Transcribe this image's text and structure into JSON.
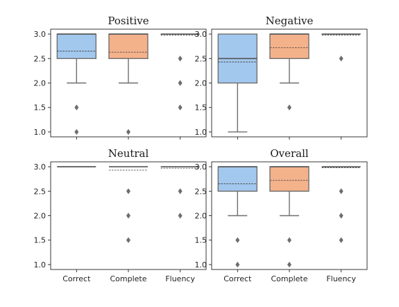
{
  "colors": {
    "box_fills": [
      "#a3c8ee",
      "#f4b28b",
      "#a6d8a6"
    ],
    "box_edge": "#6e6e6e",
    "flier": "#6e6e6e"
  },
  "chart_data": [
    {
      "type": "box",
      "title": "Positive",
      "categories": [
        "Correct",
        "Complete",
        "Fluency"
      ],
      "ylim": [
        0.9,
        3.1
      ],
      "yticks": [
        1.0,
        1.5,
        2.0,
        2.5,
        3.0
      ],
      "ytick_labels": [
        "1.0",
        "1.5",
        "2.0",
        "2.5",
        "3.0"
      ],
      "show_x_tick_labels": false,
      "boxes": [
        {
          "q1": 2.5,
          "median": 3.0,
          "q3": 3.0,
          "mean": 2.65,
          "whisker_low": 2.0,
          "whisker_high": 3.0,
          "fliers": [
            1.5,
            1.0
          ]
        },
        {
          "q1": 2.5,
          "median": 3.0,
          "q3": 3.0,
          "mean": 2.63,
          "whisker_low": 2.0,
          "whisker_high": 3.0,
          "fliers": [
            1.0
          ]
        },
        {
          "q1": 3.0,
          "median": 3.0,
          "q3": 3.0,
          "mean": 2.98,
          "whisker_low": 3.0,
          "whisker_high": 3.0,
          "fliers": [
            2.5,
            2.0,
            1.5
          ]
        }
      ]
    },
    {
      "type": "box",
      "title": "Negative",
      "categories": [
        "Correct",
        "Complete",
        "Fluency"
      ],
      "ylim": [
        0.9,
        3.1
      ],
      "yticks": [
        1.0,
        1.5,
        2.0,
        2.5,
        3.0
      ],
      "ytick_labels": [
        "1.0",
        "1.5",
        "2.0",
        "2.5",
        "3.0"
      ],
      "show_x_tick_labels": false,
      "boxes": [
        {
          "q1": 2.0,
          "median": 2.5,
          "q3": 3.0,
          "mean": 2.43,
          "whisker_low": 1.0,
          "whisker_high": 3.0,
          "fliers": []
        },
        {
          "q1": 2.5,
          "median": 3.0,
          "q3": 3.0,
          "mean": 2.72,
          "whisker_low": 2.0,
          "whisker_high": 3.0,
          "fliers": [
            1.5
          ]
        },
        {
          "q1": 3.0,
          "median": 3.0,
          "q3": 3.0,
          "mean": 2.98,
          "whisker_low": 3.0,
          "whisker_high": 3.0,
          "fliers": [
            2.5
          ]
        }
      ]
    },
    {
      "type": "box",
      "title": "Neutral",
      "categories": [
        "Correct",
        "Complete",
        "Fluency"
      ],
      "ylim": [
        0.9,
        3.1
      ],
      "yticks": [
        1.0,
        1.5,
        2.0,
        2.5,
        3.0
      ],
      "ytick_labels": [
        "1.0",
        "1.5",
        "2.0",
        "2.5",
        "3.0"
      ],
      "show_x_tick_labels": true,
      "boxes": [
        {
          "q1": 3.0,
          "median": 3.0,
          "q3": 3.0,
          "mean": 3.0,
          "whisker_low": 3.0,
          "whisker_high": 3.0,
          "fliers": []
        },
        {
          "q1": 3.0,
          "median": 3.0,
          "q3": 3.0,
          "mean": 2.93,
          "whisker_low": 3.0,
          "whisker_high": 3.0,
          "fliers": [
            2.5,
            2.0,
            1.5
          ]
        },
        {
          "q1": 3.0,
          "median": 3.0,
          "q3": 3.0,
          "mean": 2.97,
          "whisker_low": 3.0,
          "whisker_high": 3.0,
          "fliers": [
            2.5,
            2.0
          ]
        }
      ]
    },
    {
      "type": "box",
      "title": "Overall",
      "categories": [
        "Correct",
        "Complete",
        "Fluency"
      ],
      "ylim": [
        0.9,
        3.1
      ],
      "yticks": [
        1.0,
        1.5,
        2.0,
        2.5,
        3.0
      ],
      "ytick_labels": [
        "1.0",
        "1.5",
        "2.0",
        "2.5",
        "3.0"
      ],
      "show_x_tick_labels": true,
      "boxes": [
        {
          "q1": 2.5,
          "median": 3.0,
          "q3": 3.0,
          "mean": 2.65,
          "whisker_low": 2.0,
          "whisker_high": 3.0,
          "fliers": [
            1.5,
            1.0
          ]
        },
        {
          "q1": 2.5,
          "median": 3.0,
          "q3": 3.0,
          "mean": 2.72,
          "whisker_low": 2.0,
          "whisker_high": 3.0,
          "fliers": [
            1.5,
            1.0
          ]
        },
        {
          "q1": 3.0,
          "median": 3.0,
          "q3": 3.0,
          "mean": 2.98,
          "whisker_low": 3.0,
          "whisker_high": 3.0,
          "fliers": [
            2.5,
            2.0,
            1.5
          ]
        }
      ]
    }
  ]
}
